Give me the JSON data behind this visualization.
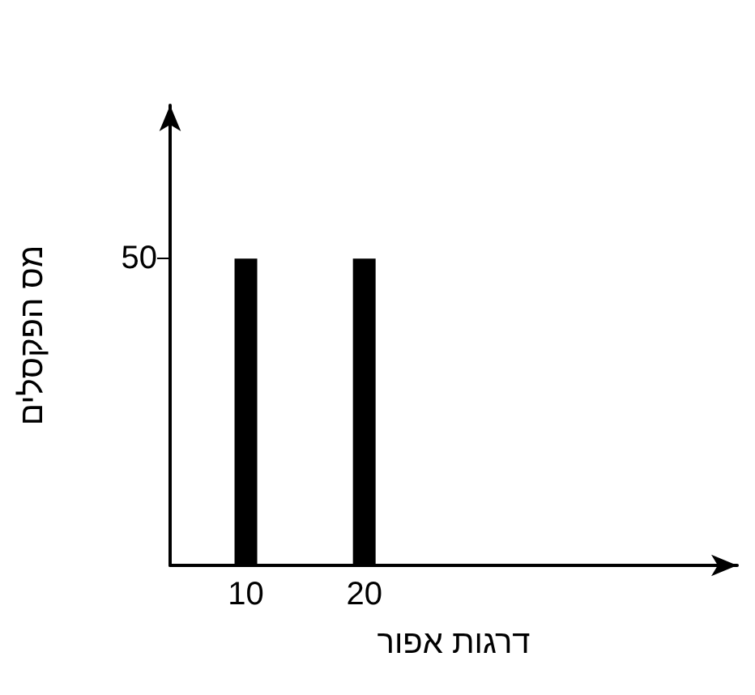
{
  "chart_data": {
    "type": "bar",
    "xlabel": "דרגות אפור",
    "ylabel": "מס הפקסלים",
    "x": [
      10,
      20
    ],
    "values": [
      50,
      50
    ],
    "color": "#000000",
    "xlim": [
      3.6,
      51.5
    ],
    "xticks": [
      10,
      20
    ],
    "ylim": [
      0,
      75
    ],
    "yticks": [
      50
    ],
    "grid": false
  }
}
